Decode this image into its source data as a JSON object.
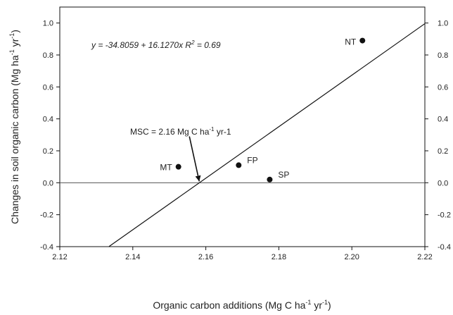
{
  "chart_data": {
    "type": "scatter",
    "title": "",
    "xlabel": "Organic carbon additions (Mg C ha",
    "xlabel_sup1": "-1",
    "xlabel_mid": " yr",
    "xlabel_sup2": "-1",
    "xlabel_end": ")",
    "ylabel": "Changes in soil organic carbon (Mg ha",
    "ylabel_sup1": "-1",
    "ylabel_mid": " yr",
    "ylabel_sup2": "-1",
    "ylabel_end": ")",
    "xlim": [
      2.12,
      2.22
    ],
    "ylim": [
      -0.4,
      1.1
    ],
    "x_ticks": [
      "2.12",
      "2.14",
      "2.16",
      "2.18",
      "2.20",
      "2.22"
    ],
    "y_ticks": [
      "-0.4",
      "-0.2",
      "0.0",
      "0.2",
      "0.4",
      "0.6",
      "0.8",
      "1.0"
    ],
    "right_y_ticks": [
      "-0.4",
      "-0.2",
      "0.0",
      "0.2",
      "0.4",
      "0.6",
      "0.8",
      "1.0"
    ],
    "grid": false,
    "points": [
      {
        "label": "NT",
        "x": 2.2029,
        "y": 0.89
      },
      {
        "label": "MT",
        "x": 2.1525,
        "y": 0.1
      },
      {
        "label": "FP",
        "x": 2.169,
        "y": 0.11
      },
      {
        "label": "SP",
        "x": 2.1775,
        "y": 0.02
      }
    ],
    "regression": {
      "intercept": -34.8059,
      "slope": 16.127,
      "x_start": 2.1335,
      "x_end": 2.22
    },
    "zero_line": 0.0,
    "equation_text_1": "y = -34.8059 + 16.1270x R",
    "equation_sup": "2",
    "equation_text_2": " = 0.69",
    "annotation": {
      "text": "MSC = 2.16 Mg C ha",
      "sup": "-1",
      "text_end": " yr-1",
      "arrow_from": {
        "x": 2.1555,
        "y": 0.29
      },
      "arrow_to": {
        "x": 2.1582,
        "y": 0.0
      }
    },
    "colors": {
      "points": "#111111",
      "lines": "#111111",
      "zero_line": "#555555",
      "text": "#222222"
    }
  }
}
